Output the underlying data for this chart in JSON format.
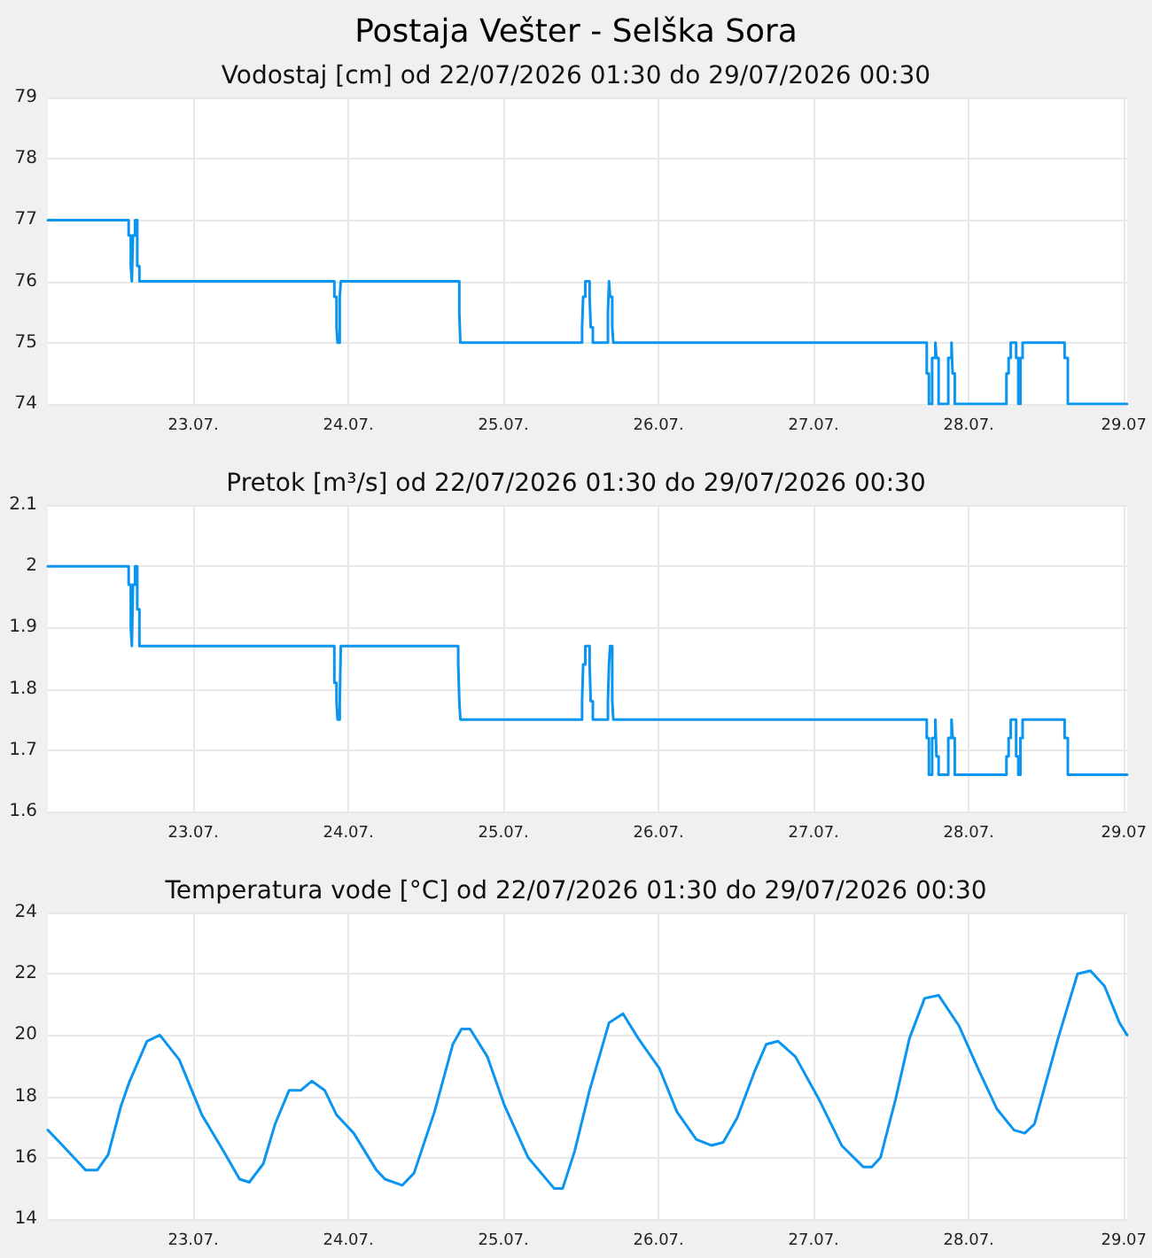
{
  "chart_data": [
    {
      "type": "step",
      "title": "Postaja Vešter - Selška Sora",
      "subtitle": "Vodostaj [cm] od 22/07/2026 01:30 do 29/07/2026 00:30",
      "grid": true,
      "marker": "none",
      "line_style": "solid",
      "xlim": [
        "2026-07-22T01:30",
        "2026-07-29T00:30"
      ],
      "xticks": [
        {
          "value": "2026-07-23",
          "label": "23.07."
        },
        {
          "value": "2026-07-24",
          "label": "24.07."
        },
        {
          "value": "2026-07-25",
          "label": "25.07."
        },
        {
          "value": "2026-07-26",
          "label": "26.07."
        },
        {
          "value": "2026-07-27",
          "label": "27.07."
        },
        {
          "value": "2026-07-28",
          "label": "28.07."
        },
        {
          "value": "2026-07-29",
          "label": "29.07"
        }
      ],
      "ylim": [
        74,
        79
      ],
      "yticks": [
        74,
        75,
        76,
        77,
        78,
        79
      ],
      "series": [
        {
          "color": "#0a96f0",
          "x": [
            "2026-07-22T01:30",
            "2026-07-22T14:00",
            "2026-07-22T14:20",
            "2026-07-22T14:30",
            "2026-07-22T14:40",
            "2026-07-22T15:00",
            "2026-07-22T15:20",
            "2026-07-22T15:40",
            "2026-07-23T21:50",
            "2026-07-23T22:10",
            "2026-07-23T22:20",
            "2026-07-23T22:40",
            "2026-07-23T22:50",
            "2026-07-24T17:10",
            "2026-07-24T17:20",
            "2026-07-25T12:10",
            "2026-07-25T12:20",
            "2026-07-25T12:40",
            "2026-07-25T13:20",
            "2026-07-25T13:30",
            "2026-07-25T13:50",
            "2026-07-25T16:10",
            "2026-07-25T16:20",
            "2026-07-25T16:30",
            "2026-07-25T16:50",
            "2026-07-25T17:00",
            "2026-07-27T17:30",
            "2026-07-27T17:50",
            "2026-07-27T18:20",
            "2026-07-27T18:50",
            "2026-07-27T19:00",
            "2026-07-27T19:20",
            "2026-07-27T20:50",
            "2026-07-27T21:20",
            "2026-07-27T21:30",
            "2026-07-27T21:50",
            "2026-07-28T05:50",
            "2026-07-28T06:10",
            "2026-07-28T06:30",
            "2026-07-28T07:20",
            "2026-07-28T07:40",
            "2026-07-28T08:00",
            "2026-07-28T08:20",
            "2026-07-28T14:50",
            "2026-07-28T15:20",
            "2026-07-29T00:30"
          ],
          "values": [
            77,
            76.75,
            76.25,
            76,
            76.75,
            77,
            76.25,
            76,
            75.75,
            75.25,
            75,
            75.75,
            76,
            75.5,
            75,
            75.25,
            75.75,
            76,
            75.75,
            75.25,
            75,
            75.5,
            76,
            75.75,
            75.25,
            75,
            74.5,
            74,
            74.75,
            75,
            74.75,
            74,
            74.75,
            75,
            74.5,
            74,
            74.5,
            74.75,
            75,
            74.75,
            74,
            74.75,
            75,
            74.75,
            74,
            74
          ]
        }
      ]
    },
    {
      "type": "step",
      "title": "Pretok [m³/s] od 22/07/2026 01:30 do 29/07/2026 00:30",
      "grid": true,
      "marker": "none",
      "line_style": "solid",
      "xlim": [
        "2026-07-22T01:30",
        "2026-07-29T00:30"
      ],
      "xticks": [
        {
          "value": "2026-07-23",
          "label": "23.07."
        },
        {
          "value": "2026-07-24",
          "label": "24.07."
        },
        {
          "value": "2026-07-25",
          "label": "25.07."
        },
        {
          "value": "2026-07-26",
          "label": "26.07."
        },
        {
          "value": "2026-07-27",
          "label": "27.07."
        },
        {
          "value": "2026-07-28",
          "label": "28.07."
        },
        {
          "value": "2026-07-29",
          "label": "29.07"
        }
      ],
      "ylim": [
        1.6,
        2.1
      ],
      "yticks": [
        1.6,
        1.7,
        1.8,
        1.9,
        2,
        2.1
      ],
      "series": [
        {
          "color": "#0a96f0",
          "x": [
            "2026-07-22T01:30",
            "2026-07-22T14:00",
            "2026-07-22T14:20",
            "2026-07-22T14:30",
            "2026-07-22T14:40",
            "2026-07-22T15:00",
            "2026-07-22T15:20",
            "2026-07-22T15:40",
            "2026-07-23T21:50",
            "2026-07-23T22:10",
            "2026-07-23T22:20",
            "2026-07-23T22:40",
            "2026-07-23T22:50",
            "2026-07-24T17:00",
            "2026-07-24T17:10",
            "2026-07-24T17:20",
            "2026-07-25T12:10",
            "2026-07-25T12:20",
            "2026-07-25T12:40",
            "2026-07-25T13:20",
            "2026-07-25T13:30",
            "2026-07-25T13:50",
            "2026-07-25T16:10",
            "2026-07-25T16:20",
            "2026-07-25T16:30",
            "2026-07-25T16:50",
            "2026-07-25T17:00",
            "2026-07-27T17:30",
            "2026-07-27T17:50",
            "2026-07-27T18:20",
            "2026-07-27T18:50",
            "2026-07-27T19:00",
            "2026-07-27T19:20",
            "2026-07-27T20:50",
            "2026-07-27T21:20",
            "2026-07-27T21:30",
            "2026-07-27T21:50",
            "2026-07-28T05:50",
            "2026-07-28T06:10",
            "2026-07-28T06:30",
            "2026-07-28T07:20",
            "2026-07-28T07:40",
            "2026-07-28T08:00",
            "2026-07-28T08:20",
            "2026-07-28T14:50",
            "2026-07-28T15:20",
            "2026-07-29T00:30"
          ],
          "values": [
            2,
            1.97,
            1.9,
            1.87,
            1.97,
            2,
            1.93,
            1.87,
            1.81,
            1.78,
            1.75,
            1.78,
            1.87,
            1.84,
            1.78,
            1.75,
            1.78,
            1.84,
            1.87,
            1.84,
            1.78,
            1.75,
            1.78,
            1.84,
            1.87,
            1.78,
            1.75,
            1.72,
            1.66,
            1.72,
            1.75,
            1.69,
            1.66,
            1.72,
            1.75,
            1.72,
            1.66,
            1.69,
            1.72,
            1.75,
            1.69,
            1.66,
            1.72,
            1.75,
            1.72,
            1.66,
            1.66
          ]
        }
      ]
    },
    {
      "type": "line",
      "title": "Temperatura vode [°C] od 22/07/2026 01:30 do 29/07/2026 00:30",
      "grid": true,
      "marker": "none",
      "line_style": "solid",
      "xlim": [
        "2026-07-22T01:30",
        "2026-07-29T00:30"
      ],
      "xticks": [
        {
          "value": "2026-07-23",
          "label": "23.07."
        },
        {
          "value": "2026-07-24",
          "label": "24.07."
        },
        {
          "value": "2026-07-25",
          "label": "25.07."
        },
        {
          "value": "2026-07-26",
          "label": "26.07."
        },
        {
          "value": "2026-07-27",
          "label": "27.07."
        },
        {
          "value": "2026-07-28",
          "label": "28.07."
        },
        {
          "value": "2026-07-29",
          "label": "29.07"
        }
      ],
      "ylim": [
        14,
        24
      ],
      "yticks": [
        14,
        16,
        18,
        20,
        22,
        24
      ],
      "series": [
        {
          "color": "#0a96f0",
          "x": [
            "2026-07-22T01:30",
            "2026-07-22T03:20",
            "2026-07-22T06:00",
            "2026-07-22T07:20",
            "2026-07-22T09:10",
            "2026-07-22T10:50",
            "2026-07-22T12:50",
            "2026-07-22T14:10",
            "2026-07-22T16:50",
            "2026-07-22T18:50",
            "2026-07-22T21:50",
            "2026-07-23T01:20",
            "2026-07-23T05:00",
            "2026-07-23T07:10",
            "2026-07-23T08:40",
            "2026-07-23T10:50",
            "2026-07-23T12:40",
            "2026-07-23T14:50",
            "2026-07-23T16:40",
            "2026-07-23T18:20",
            "2026-07-23T20:20",
            "2026-07-23T22:10",
            "2026-07-24T00:50",
            "2026-07-24T04:20",
            "2026-07-24T05:40",
            "2026-07-24T08:20",
            "2026-07-24T10:10",
            "2026-07-24T13:20",
            "2026-07-24T16:10",
            "2026-07-24T17:30",
            "2026-07-24T18:50",
            "2026-07-24T21:30",
            "2026-07-25T00:10",
            "2026-07-25T03:50",
            "2026-07-25T07:50",
            "2026-07-25T09:10",
            "2026-07-25T11:00",
            "2026-07-25T13:20",
            "2026-07-25T16:20",
            "2026-07-25T18:30",
            "2026-07-25T20:50",
            "2026-07-26T00:10",
            "2026-07-26T02:50",
            "2026-07-26T05:50",
            "2026-07-26T08:10",
            "2026-07-26T10:00",
            "2026-07-26T12:10",
            "2026-07-26T14:50",
            "2026-07-26T16:40",
            "2026-07-26T18:30",
            "2026-07-26T21:10",
            "2026-07-27T00:50",
            "2026-07-27T04:20",
            "2026-07-27T07:40",
            "2026-07-27T09:00",
            "2026-07-27T10:20",
            "2026-07-27T12:40",
            "2026-07-27T14:50",
            "2026-07-27T17:10",
            "2026-07-27T19:20",
            "2026-07-27T22:30",
            "2026-07-28T01:40",
            "2026-07-28T04:20",
            "2026-07-28T07:00",
            "2026-07-28T08:40",
            "2026-07-28T10:10",
            "2026-07-28T13:50",
            "2026-07-28T16:50",
            "2026-07-28T18:50",
            "2026-07-28T21:00",
            "2026-07-28T23:20",
            "2026-07-29T00:30"
          ],
          "values": [
            16.9,
            16.5,
            15.9,
            15.6,
            15.6,
            16.1,
            17.7,
            18.5,
            19.8,
            20,
            19.2,
            17.4,
            16.1,
            15.3,
            15.2,
            15.8,
            17.1,
            18.2,
            18.2,
            18.5,
            18.2,
            17.4,
            16.8,
            15.6,
            15.3,
            15.1,
            15.5,
            17.5,
            19.7,
            20.2,
            20.2,
            19.3,
            17.7,
            16,
            15,
            15,
            16.2,
            18.2,
            20.4,
            20.7,
            19.9,
            18.9,
            17.5,
            16.6,
            16.4,
            16.5,
            17.3,
            18.8,
            19.7,
            19.8,
            19.3,
            17.9,
            16.4,
            15.7,
            15.7,
            16,
            17.9,
            19.9,
            21.2,
            21.3,
            20.3,
            18.8,
            17.6,
            16.9,
            16.8,
            17.1,
            19.9,
            22,
            22.1,
            21.6,
            20.4,
            20
          ]
        }
      ]
    }
  ]
}
